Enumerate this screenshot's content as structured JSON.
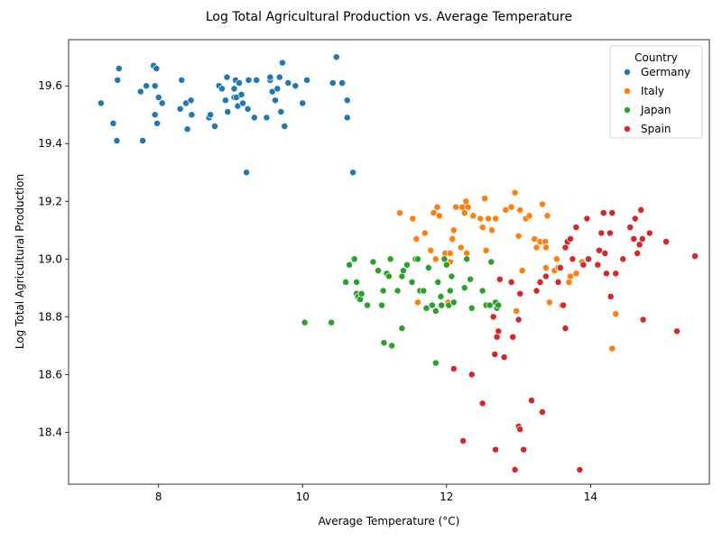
{
  "chart_data": {
    "type": "scatter",
    "title": "Log Total Agricultural Production vs. Average Temperature",
    "xlabel": "Average Temperature (°C)",
    "ylabel": "Log Total Agricultural Production",
    "xlim": [
      6.75,
      15.65
    ],
    "ylim": [
      18.22,
      19.76
    ],
    "xticks": [
      8,
      10,
      12,
      14
    ],
    "yticks": [
      18.4,
      18.6,
      18.8,
      19.0,
      19.2,
      19.4,
      19.6
    ],
    "grid": false,
    "legend": {
      "title": "Country",
      "placement": "top-right"
    },
    "series": [
      {
        "name": "Germany",
        "color": "#1f77b4",
        "points": [
          [
            7.2,
            19.54
          ],
          [
            7.37,
            19.47
          ],
          [
            7.42,
            19.41
          ],
          [
            7.43,
            19.62
          ],
          [
            7.45,
            19.66
          ],
          [
            7.75,
            19.58
          ],
          [
            7.78,
            19.41
          ],
          [
            7.83,
            19.6
          ],
          [
            7.93,
            19.67
          ],
          [
            7.95,
            19.5
          ],
          [
            7.95,
            19.6
          ],
          [
            7.97,
            19.66
          ],
          [
            7.98,
            19.47
          ],
          [
            8.0,
            19.56
          ],
          [
            8.05,
            19.54
          ],
          [
            8.3,
            19.52
          ],
          [
            8.32,
            19.62
          ],
          [
            8.38,
            19.54
          ],
          [
            8.4,
            19.45
          ],
          [
            8.45,
            19.55
          ],
          [
            8.46,
            19.5
          ],
          [
            8.7,
            19.49
          ],
          [
            8.72,
            19.5
          ],
          [
            8.78,
            19.46
          ],
          [
            8.84,
            19.6
          ],
          [
            8.88,
            19.59
          ],
          [
            8.93,
            19.55
          ],
          [
            8.95,
            19.63
          ],
          [
            8.96,
            19.51
          ],
          [
            9.05,
            19.56
          ],
          [
            9.05,
            19.59
          ],
          [
            9.07,
            19.62
          ],
          [
            9.08,
            19.56
          ],
          [
            9.1,
            19.53
          ],
          [
            9.12,
            19.61
          ],
          [
            9.15,
            19.57
          ],
          [
            9.17,
            19.54
          ],
          [
            9.22,
            19.3
          ],
          [
            9.24,
            19.52
          ],
          [
            9.25,
            19.62
          ],
          [
            9.33,
            19.49
          ],
          [
            9.36,
            19.62
          ],
          [
            9.5,
            19.49
          ],
          [
            9.55,
            19.62
          ],
          [
            9.55,
            19.63
          ],
          [
            9.58,
            19.58
          ],
          [
            9.62,
            19.55
          ],
          [
            9.65,
            19.59
          ],
          [
            9.68,
            19.63
          ],
          [
            9.7,
            19.51
          ],
          [
            9.72,
            19.68
          ],
          [
            9.75,
            19.46
          ],
          [
            9.8,
            19.61
          ],
          [
            9.9,
            19.6
          ],
          [
            10.0,
            19.54
          ],
          [
            10.06,
            19.62
          ],
          [
            10.42,
            19.61
          ],
          [
            10.47,
            19.7
          ],
          [
            10.55,
            19.61
          ],
          [
            10.62,
            19.55
          ],
          [
            10.62,
            19.49
          ],
          [
            10.7,
            19.3
          ]
        ]
      },
      {
        "name": "Italy",
        "color": "#ff7f0e",
        "points": [
          [
            11.35,
            19.16
          ],
          [
            11.53,
            19.14
          ],
          [
            11.58,
            19.07
          ],
          [
            11.6,
            18.85
          ],
          [
            11.7,
            19.09
          ],
          [
            11.78,
            19.03
          ],
          [
            11.82,
            19.16
          ],
          [
            11.85,
            19.0
          ],
          [
            11.87,
            19.18
          ],
          [
            11.9,
            19.15
          ],
          [
            11.98,
            19.02
          ],
          [
            12.02,
            18.85
          ],
          [
            12.05,
            19.02
          ],
          [
            12.05,
            18.99
          ],
          [
            12.08,
            19.07
          ],
          [
            12.1,
            19.1
          ],
          [
            12.13,
            19.18
          ],
          [
            12.2,
            19.04
          ],
          [
            12.22,
            19.18
          ],
          [
            12.25,
            19.16
          ],
          [
            12.27,
            19.2
          ],
          [
            12.28,
            19.02
          ],
          [
            12.3,
            19.18
          ],
          [
            12.37,
            19.15
          ],
          [
            12.47,
            19.14
          ],
          [
            12.5,
            19.11
          ],
          [
            12.53,
            19.21
          ],
          [
            12.55,
            19.03
          ],
          [
            12.58,
            19.14
          ],
          [
            12.63,
            19.1
          ],
          [
            12.68,
            19.14
          ],
          [
            12.82,
            19.17
          ],
          [
            12.9,
            19.18
          ],
          [
            12.95,
            19.23
          ],
          [
            12.97,
            18.82
          ],
          [
            13.0,
            19.08
          ],
          [
            13.02,
            19.17
          ],
          [
            13.05,
            18.96
          ],
          [
            13.1,
            19.14
          ],
          [
            13.15,
            19.15
          ],
          [
            13.22,
            19.07
          ],
          [
            13.25,
            19.04
          ],
          [
            13.3,
            19.06
          ],
          [
            13.33,
            19.19
          ],
          [
            13.37,
            19.06
          ],
          [
            13.38,
            19.04
          ],
          [
            13.38,
            18.97
          ],
          [
            13.4,
            19.15
          ],
          [
            13.43,
            18.85
          ],
          [
            13.5,
            18.96
          ],
          [
            13.53,
            19.0
          ],
          [
            13.55,
            18.97
          ],
          [
            13.6,
            18.84
          ],
          [
            13.7,
            18.92
          ],
          [
            13.72,
            18.94
          ],
          [
            13.8,
            18.95
          ],
          [
            13.88,
            18.99
          ],
          [
            14.3,
            18.69
          ],
          [
            14.35,
            18.81
          ]
        ]
      },
      {
        "name": "Japan",
        "color": "#2ca02c",
        "points": [
          [
            10.03,
            18.78
          ],
          [
            10.4,
            18.78
          ],
          [
            10.6,
            18.92
          ],
          [
            10.65,
            18.98
          ],
          [
            10.72,
            19.0
          ],
          [
            10.75,
            18.88
          ],
          [
            10.75,
            18.92
          ],
          [
            10.77,
            18.87
          ],
          [
            10.8,
            18.86
          ],
          [
            10.82,
            18.88
          ],
          [
            10.9,
            18.84
          ],
          [
            10.98,
            18.99
          ],
          [
            11.05,
            18.96
          ],
          [
            11.1,
            18.84
          ],
          [
            11.12,
            18.89
          ],
          [
            11.13,
            18.71
          ],
          [
            11.17,
            18.95
          ],
          [
            11.2,
            18.94
          ],
          [
            11.22,
            19.0
          ],
          [
            11.24,
            18.7
          ],
          [
            11.32,
            18.89
          ],
          [
            11.38,
            18.76
          ],
          [
            11.38,
            18.94
          ],
          [
            11.4,
            18.96
          ],
          [
            11.45,
            18.98
          ],
          [
            11.52,
            18.92
          ],
          [
            11.57,
            19.0
          ],
          [
            11.6,
            19.0
          ],
          [
            11.63,
            18.89
          ],
          [
            11.68,
            18.89
          ],
          [
            11.72,
            18.83
          ],
          [
            11.75,
            18.97
          ],
          [
            11.8,
            18.84
          ],
          [
            11.85,
            18.64
          ],
          [
            11.85,
            18.82
          ],
          [
            11.88,
            18.92
          ],
          [
            11.92,
            18.87
          ],
          [
            11.93,
            18.84
          ],
          [
            11.97,
            19.0
          ],
          [
            12.0,
            18.98
          ],
          [
            12.03,
            18.84
          ],
          [
            12.05,
            18.89
          ],
          [
            12.07,
            18.94
          ],
          [
            12.1,
            18.85
          ],
          [
            12.25,
            18.9
          ],
          [
            12.28,
            19.0
          ],
          [
            12.33,
            18.93
          ],
          [
            12.35,
            18.83
          ],
          [
            12.5,
            18.89
          ],
          [
            12.55,
            18.84
          ],
          [
            12.6,
            18.84
          ],
          [
            12.62,
            18.99
          ],
          [
            12.68,
            18.85
          ],
          [
            12.7,
            18.83
          ],
          [
            12.72,
            18.84
          ]
        ]
      },
      {
        "name": "Spain",
        "color": "#d62728",
        "points": [
          [
            12.1,
            18.62
          ],
          [
            12.23,
            18.37
          ],
          [
            12.35,
            18.6
          ],
          [
            12.5,
            18.5
          ],
          [
            12.65,
            18.8
          ],
          [
            12.67,
            18.67
          ],
          [
            12.68,
            18.34
          ],
          [
            12.7,
            18.73
          ],
          [
            12.72,
            18.75
          ],
          [
            12.74,
            18.93
          ],
          [
            12.8,
            18.66
          ],
          [
            12.9,
            18.92
          ],
          [
            12.92,
            18.73
          ],
          [
            12.95,
            18.27
          ],
          [
            13.0,
            18.42
          ],
          [
            13.02,
            18.41
          ],
          [
            13.0,
            18.79
          ],
          [
            13.02,
            18.88
          ],
          [
            13.07,
            18.34
          ],
          [
            13.18,
            18.51
          ],
          [
            13.25,
            18.89
          ],
          [
            13.3,
            18.92
          ],
          [
            13.33,
            18.47
          ],
          [
            13.38,
            18.94
          ],
          [
            13.55,
            18.92
          ],
          [
            13.58,
            18.97
          ],
          [
            13.62,
            18.84
          ],
          [
            13.65,
            19.04
          ],
          [
            13.65,
            18.76
          ],
          [
            13.68,
            19.06
          ],
          [
            13.72,
            19.07
          ],
          [
            13.75,
            19.0
          ],
          [
            13.8,
            19.11
          ],
          [
            13.85,
            18.27
          ],
          [
            13.9,
            18.98
          ],
          [
            13.95,
            19.14
          ],
          [
            13.97,
            19.0
          ],
          [
            14.1,
            18.98
          ],
          [
            14.12,
            19.03
          ],
          [
            14.15,
            19.09
          ],
          [
            14.18,
            19.16
          ],
          [
            14.2,
            19.02
          ],
          [
            14.22,
            18.95
          ],
          [
            14.27,
            19.09
          ],
          [
            14.28,
            18.87
          ],
          [
            14.3,
            19.16
          ],
          [
            14.35,
            18.95
          ],
          [
            14.45,
            19.0
          ],
          [
            14.55,
            19.11
          ],
          [
            14.6,
            19.07
          ],
          [
            14.62,
            19.14
          ],
          [
            14.65,
            19.02
          ],
          [
            14.68,
            19.05
          ],
          [
            14.7,
            19.17
          ],
          [
            14.72,
            19.07
          ],
          [
            14.73,
            18.79
          ],
          [
            14.82,
            19.09
          ],
          [
            15.05,
            19.06
          ],
          [
            15.2,
            18.75
          ],
          [
            15.45,
            19.01
          ]
        ]
      }
    ]
  }
}
